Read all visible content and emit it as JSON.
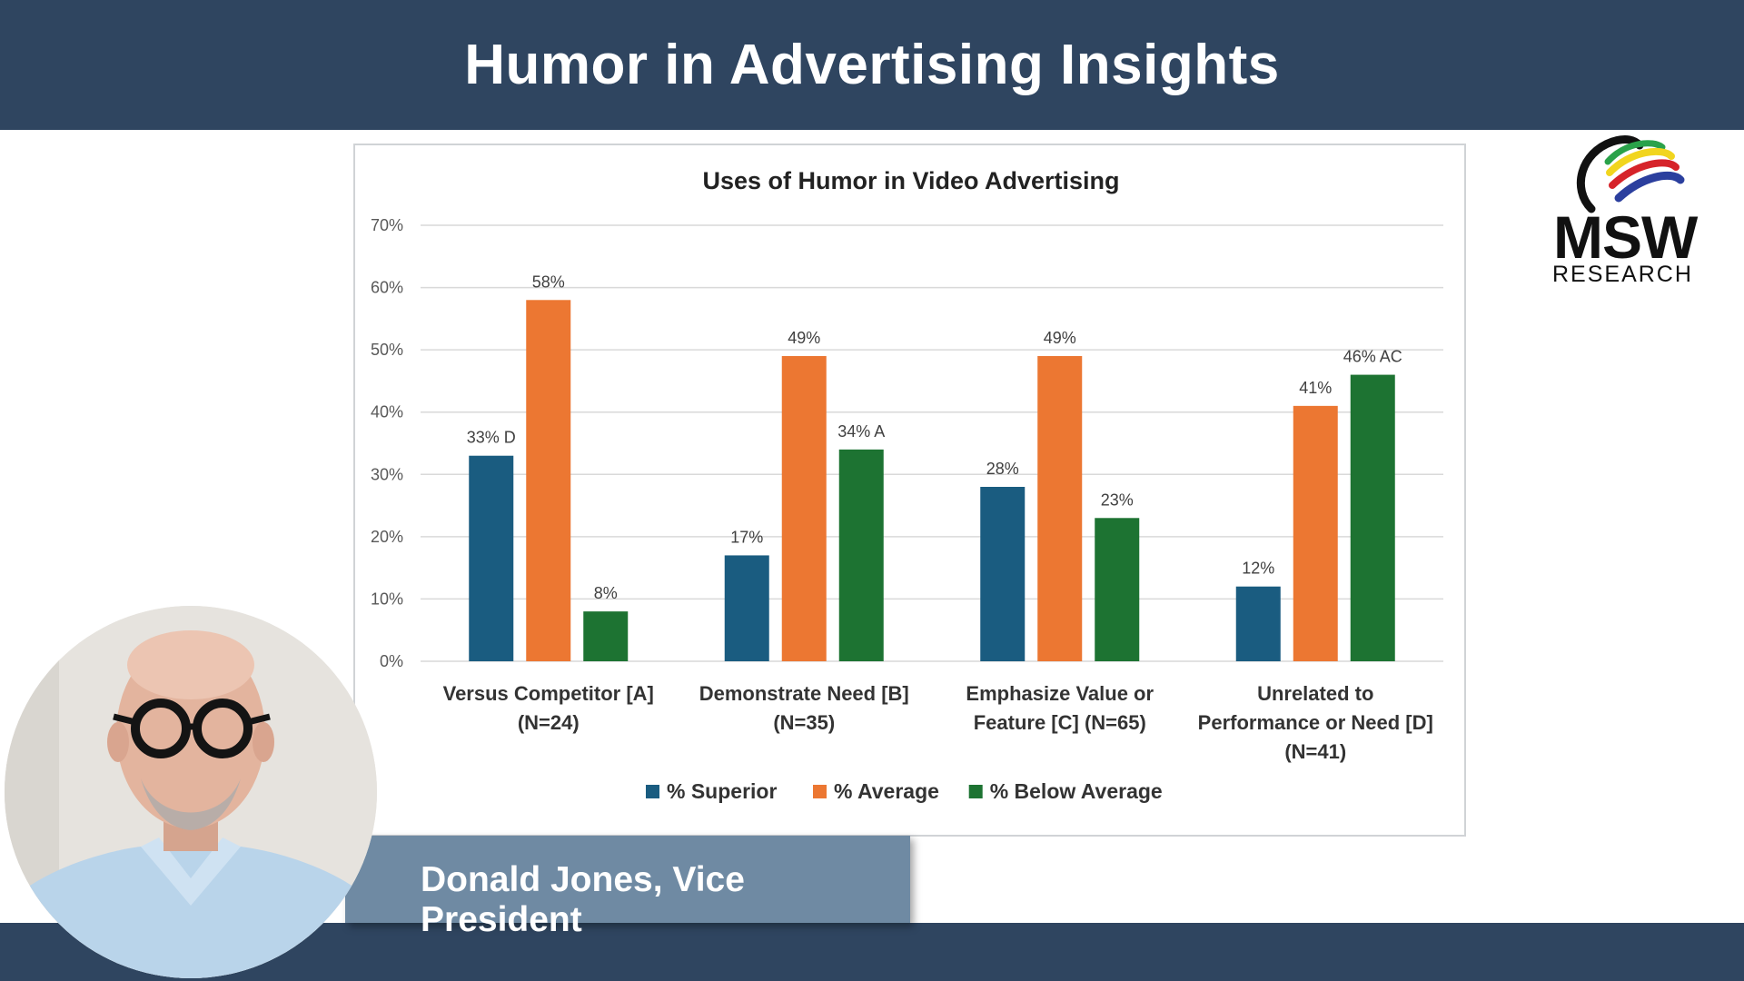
{
  "header": {
    "title": "Humor in Advertising Insights"
  },
  "presenter": {
    "name_title": "Donald Jones, Vice President"
  },
  "logo": {
    "word": "MSW",
    "sub": "RESEARCH"
  },
  "colors": {
    "banner": "#2f4560",
    "superior": "#1a5c80",
    "average": "#ec7732",
    "below_average": "#1d7332"
  },
  "chart_data": {
    "type": "bar",
    "title": "Uses of Humor in Video Advertising",
    "xlabel": "",
    "ylabel": "",
    "ylim": [
      0,
      70
    ],
    "yticks": [
      "0%",
      "10%",
      "20%",
      "30%",
      "40%",
      "50%",
      "60%",
      "70%"
    ],
    "grid": true,
    "legend_position": "bottom",
    "categories": [
      [
        "Versus Competitor [A]",
        "(N=24)"
      ],
      [
        "Demonstrate Need  [B]",
        "(N=35)"
      ],
      [
        "Emphasize Value or",
        "Feature [C] (N=65)"
      ],
      [
        "Unrelated to",
        "Performance or Need [D]",
        "(N=41)"
      ]
    ],
    "series": [
      {
        "name": "% Superior",
        "color": "#1a5c80",
        "values": [
          33,
          17,
          28,
          12
        ],
        "labels": [
          "33% D",
          "17%",
          "28%",
          "12%"
        ]
      },
      {
        "name": "% Average",
        "color": "#ec7732",
        "values": [
          58,
          49,
          49,
          41
        ],
        "labels": [
          "58%",
          "49%",
          "49%",
          "41%"
        ]
      },
      {
        "name": "% Below Average",
        "color": "#1d7332",
        "values": [
          8,
          34,
          23,
          46
        ],
        "labels": [
          "8%",
          "34% A",
          "23%",
          "46% AC"
        ]
      }
    ]
  }
}
